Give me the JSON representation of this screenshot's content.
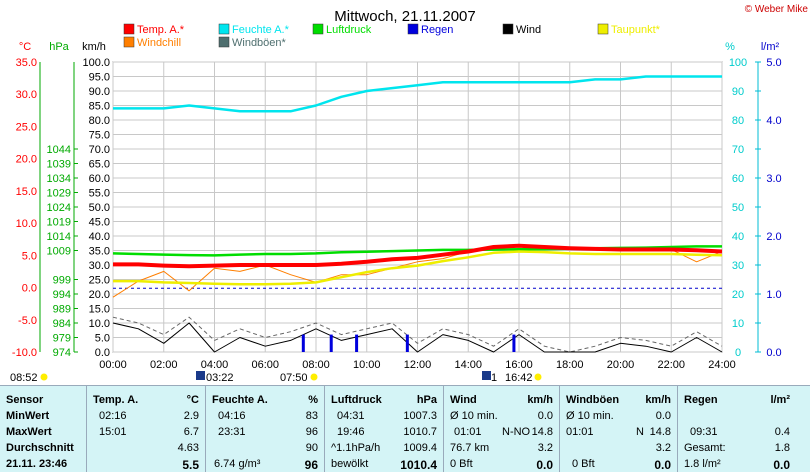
{
  "title": "Mittwoch, 21.11.2007",
  "copyright": "© Weber Mike",
  "legend": [
    {
      "label": "Temp. A.*",
      "color": "#ff0000"
    },
    {
      "label": "Feuchte A.*",
      "color": "#00e5ee"
    },
    {
      "label": "Luftdruck",
      "color": "#00dd00"
    },
    {
      "label": "Regen",
      "color": "#0000dd"
    },
    {
      "label": "Wind",
      "color": "#000000"
    },
    {
      "label": "Taupunkt*",
      "color": "#eeee00"
    },
    {
      "label": "Windchill",
      "color": "#ff7f00"
    },
    {
      "label": "Windböen*",
      "color": "#4f6f6f"
    }
  ],
  "units": {
    "temp": "°C",
    "pressure": "hPa",
    "wind": "km/h",
    "humidity": "%",
    "rain": "l/m²"
  },
  "axes": {
    "temp_ticks": [
      "35.0",
      "30.0",
      "25.0",
      "20.0",
      "15.0",
      "10.0",
      "5.0",
      "0.0",
      "-5.0",
      "-10.0"
    ],
    "pressure_ticks": [
      "1044",
      "1039",
      "1034",
      "1029",
      "1024",
      "1019",
      "1014",
      "1009",
      "999",
      "994",
      "989",
      "984",
      "979",
      "974"
    ],
    "wind_ticks": [
      "100.0",
      "95.0",
      "90.0",
      "85.0",
      "80.0",
      "75.0",
      "70.0",
      "65.0",
      "60.0",
      "55.0",
      "50.0",
      "45.0",
      "40.0",
      "35.0",
      "30.0",
      "25.0",
      "20.0",
      "15.0",
      "10.0",
      "5.0",
      "0.0"
    ],
    "humidity_ticks": [
      "100",
      "90",
      "80",
      "70",
      "60",
      "50",
      "40",
      "30",
      "20",
      "10",
      "0"
    ],
    "rain_ticks": [
      "5.0",
      "4.0",
      "3.0",
      "2.0",
      "1.0",
      "0.0"
    ],
    "time_ticks": [
      "00:00",
      "02:00",
      "04:00",
      "06:00",
      "08:00",
      "10:00",
      "12:00",
      "14:00",
      "16:00",
      "18:00",
      "20:00",
      "22:00",
      "24:00"
    ]
  },
  "sun_moon": {
    "sunrise": "08:52",
    "sunset": "03:22",
    "moonrise": "07:50",
    "moonset": "16:42",
    "moon_prefix": "1"
  },
  "chart_data": {
    "type": "line",
    "title": "Mittwoch, 21.11.2007",
    "x_label": "time",
    "x": [
      0,
      1,
      2,
      3,
      4,
      5,
      6,
      7,
      8,
      9,
      10,
      11,
      12,
      13,
      14,
      15,
      16,
      17,
      18,
      19,
      20,
      21,
      22,
      23,
      24
    ],
    "series": [
      {
        "name": "Temp. A.*",
        "unit": "°C",
        "values": [
          3.6,
          3.6,
          3.4,
          3.3,
          3.4,
          3.5,
          3.5,
          3.5,
          3.5,
          3.7,
          4.0,
          4.4,
          4.6,
          5.1,
          5.6,
          6.3,
          6.5,
          6.3,
          6.1,
          6.0,
          5.9,
          5.9,
          5.9,
          5.8,
          5.6
        ]
      },
      {
        "name": "Feuchte A.*",
        "unit": "%",
        "values": [
          84,
          84,
          84,
          85,
          84,
          83,
          83,
          83,
          85,
          88,
          90,
          91,
          92,
          93,
          93,
          93,
          93,
          93,
          93,
          94,
          94,
          95,
          95,
          95,
          95
        ]
      },
      {
        "name": "Luftdruck",
        "unit": "hPa",
        "values": [
          1008.0,
          1007.8,
          1007.6,
          1007.4,
          1007.3,
          1007.6,
          1007.8,
          1007.8,
          1008.0,
          1008.4,
          1008.6,
          1008.8,
          1009.0,
          1009.2,
          1009.2,
          1009.3,
          1009.4,
          1009.4,
          1009.6,
          1009.8,
          1009.9,
          1010.0,
          1010.2,
          1010.4,
          1010.4
        ]
      },
      {
        "name": "Taupunkt*",
        "unit": "°C",
        "values": [
          1.0,
          1.0,
          0.8,
          0.7,
          0.6,
          0.5,
          0.5,
          0.6,
          0.8,
          1.6,
          2.4,
          3.0,
          3.4,
          4.1,
          4.7,
          5.4,
          5.6,
          5.5,
          5.3,
          5.2,
          5.2,
          5.2,
          5.2,
          5.1,
          5.0
        ]
      },
      {
        "name": "Windchill",
        "unit": "°C",
        "values": [
          -1.5,
          1.0,
          2.5,
          -0.5,
          3.0,
          2.5,
          3.5,
          2.0,
          0.8,
          2.0,
          2.0,
          3.0,
          4.0,
          4.5,
          5.6,
          6.3,
          6.5,
          6.3,
          6.1,
          6.0,
          5.9,
          5.9,
          5.9,
          4.0,
          5.6
        ]
      },
      {
        "name": "Wind",
        "unit": "km/h",
        "values": [
          10,
          8,
          3,
          10,
          0,
          5,
          2,
          4,
          8,
          4,
          6,
          8,
          0,
          6,
          4,
          0,
          6,
          0,
          0,
          0,
          3,
          2,
          0,
          5,
          0
        ]
      },
      {
        "name": "Windböen*",
        "unit": "km/h",
        "values": [
          12,
          10,
          6,
          12,
          4,
          8,
          5,
          7,
          10,
          6,
          8,
          10,
          3,
          8,
          6,
          2,
          8,
          2,
          0,
          2,
          5,
          4,
          2,
          7,
          2
        ]
      },
      {
        "name": "Regen",
        "unit": "l/m²",
        "bars": [
          [
            7.5,
            0.3
          ],
          [
            8.6,
            0.3
          ],
          [
            9.6,
            0.3
          ],
          [
            11.6,
            0.3
          ],
          [
            15.8,
            0.3
          ]
        ]
      }
    ],
    "dashed_line": {
      "axis": "rain",
      "value": 1.1
    }
  },
  "stats": {
    "header": {
      "sensor": "Sensor",
      "temp": "Temp. A.",
      "temp_unit": "°C",
      "hum": "Feuchte A.",
      "hum_unit": "%",
      "press": "Luftdruck",
      "press_unit": "hPa",
      "wind": "Wind",
      "wind_unit": "km/h",
      "gust": "Windböen",
      "gust_unit": "km/h",
      "rain": "Regen",
      "rain_unit": "l/m²"
    },
    "rows": [
      {
        "label": "MinWert",
        "temp_time": "02:16",
        "temp_val": "2.9",
        "hum_time": "04:16",
        "hum_val": "83",
        "press_time": "04:31",
        "press_val": "1007.3",
        "wind_time": "Ø 10 min.",
        "wind_val": "0.0",
        "gust_time": "Ø 10 min.",
        "gust_val": "0.0",
        "rain_time": "",
        "rain_val": ""
      },
      {
        "label": "MaxWert",
        "temp_time": "15:01",
        "temp_val": "6.7",
        "hum_time": "23:31",
        "hum_val": "96",
        "press_time": "19:46",
        "press_val": "1010.7",
        "wind_time": "01:01",
        "wind_dir": "N-NO",
        "wind_val": "14.8",
        "gust_time": "01:01",
        "gust_dir": "N",
        "gust_val": "14.8",
        "rain_time": "09:31",
        "rain_val": "0.4"
      },
      {
        "label": "Durchschnitt",
        "temp_time": "",
        "temp_val": "4.63",
        "hum_time": "",
        "hum_val": "90",
        "press_time": "^1.1hPa/h",
        "press_val": "1009.4",
        "wind_time": "76.7 km",
        "wind_val": "3.2",
        "gust_time": "",
        "gust_val": "3.2",
        "rain_time": "Gesamt:",
        "rain_val": "1.8"
      },
      {
        "label": "21.11. 23:46",
        "temp_time": "",
        "temp_val": "5.5",
        "hum_time": "6.74 g/m³",
        "hum_val": "96",
        "press_time": "bewölkt",
        "press_val": "1010.4",
        "wind_time": "0 Bft",
        "wind_val": "0.0",
        "gust_time": "0 Bft",
        "gust_val": "0.0",
        "rain_time": "1.8 l/m²",
        "rain_val": "0.0"
      }
    ]
  }
}
